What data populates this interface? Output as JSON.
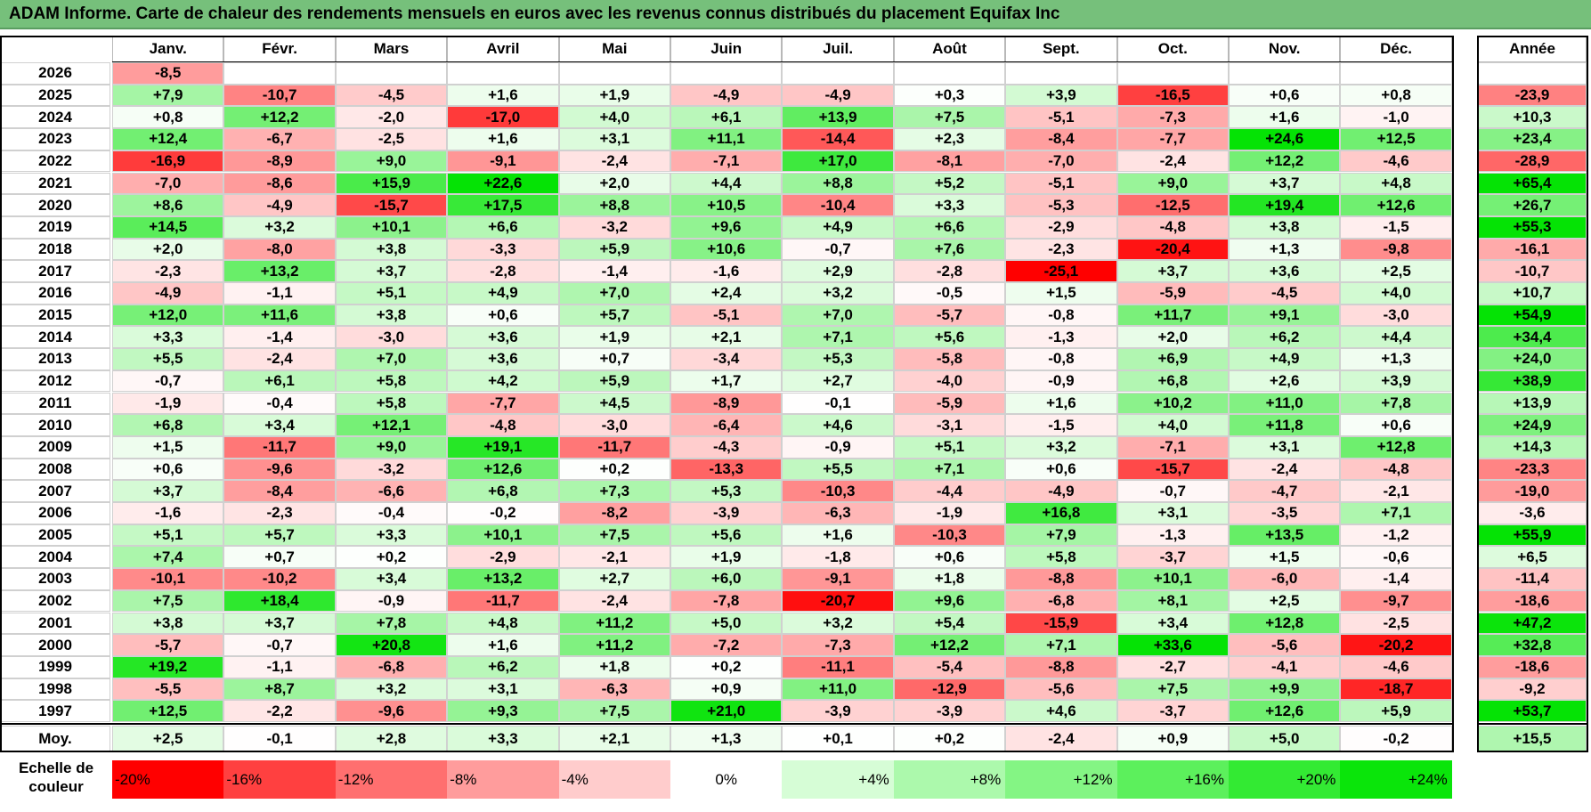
{
  "title": "ADAM Informe. Carte de chaleur des rendements mensuels en euros avec les revenus connus distribués du placement Equifax Inc",
  "chart_data": {
    "type": "heatmap",
    "title": "ADAM Informe. Carte de chaleur des rendements mensuels en euros avec les revenus connus distribués du placement Equifax Inc",
    "columns": [
      "Janv.",
      "Févr.",
      "Mars",
      "Avril",
      "Mai",
      "Juin",
      "Juil.",
      "Août",
      "Sept.",
      "Oct.",
      "Nov.",
      "Déc."
    ],
    "year_header": "Année",
    "rows": [
      {
        "year": "2026",
        "months": [
          "-8,5",
          "",
          "",
          "",
          "",
          "",
          "",
          "",
          "",
          "",
          "",
          ""
        ],
        "annual": ""
      },
      {
        "year": "2025",
        "months": [
          "+7,9",
          "-10,7",
          "-4,5",
          "+1,6",
          "+1,9",
          "-4,9",
          "-4,9",
          "+0,3",
          "+3,9",
          "-16,5",
          "+0,6",
          "+0,8"
        ],
        "annual": "-23,9"
      },
      {
        "year": "2024",
        "months": [
          "+0,8",
          "+12,2",
          "-2,0",
          "-17,0",
          "+4,0",
          "+6,1",
          "+13,9",
          "+7,5",
          "-5,1",
          "-7,3",
          "+1,6",
          "-1,0"
        ],
        "annual": "+10,3"
      },
      {
        "year": "2023",
        "months": [
          "+12,4",
          "-6,7",
          "-2,5",
          "+1,6",
          "+3,1",
          "+11,1",
          "-14,4",
          "+2,3",
          "-8,4",
          "-7,7",
          "+24,6",
          "+12,5"
        ],
        "annual": "+23,4"
      },
      {
        "year": "2022",
        "months": [
          "-16,9",
          "-8,9",
          "+9,0",
          "-9,1",
          "-2,4",
          "-7,1",
          "+17,0",
          "-8,1",
          "-7,0",
          "-2,4",
          "+12,2",
          "-4,6"
        ],
        "annual": "-28,9"
      },
      {
        "year": "2021",
        "months": [
          "-7,0",
          "-8,6",
          "+15,9",
          "+22,6",
          "+2,0",
          "+4,4",
          "+8,8",
          "+5,2",
          "-5,1",
          "+9,0",
          "+3,7",
          "+4,8"
        ],
        "annual": "+65,4"
      },
      {
        "year": "2020",
        "months": [
          "+8,6",
          "-4,9",
          "-15,7",
          "+17,5",
          "+8,8",
          "+10,5",
          "-10,4",
          "+3,3",
          "-5,3",
          "-12,5",
          "+19,4",
          "+12,6"
        ],
        "annual": "+26,7"
      },
      {
        "year": "2019",
        "months": [
          "+14,5",
          "+3,2",
          "+10,1",
          "+6,6",
          "-3,2",
          "+9,6",
          "+4,9",
          "+6,6",
          "-2,9",
          "-4,8",
          "+3,8",
          "-1,5"
        ],
        "annual": "+55,3"
      },
      {
        "year": "2018",
        "months": [
          "+2,0",
          "-8,0",
          "+3,8",
          "-3,3",
          "+5,9",
          "+10,6",
          "-0,7",
          "+7,6",
          "-2,3",
          "-20,4",
          "+1,3",
          "-9,8"
        ],
        "annual": "-16,1"
      },
      {
        "year": "2017",
        "months": [
          "-2,3",
          "+13,2",
          "+3,7",
          "-2,8",
          "-1,4",
          "-1,6",
          "+2,9",
          "-2,8",
          "-25,1",
          "+3,7",
          "+3,6",
          "+2,5"
        ],
        "annual": "-10,7"
      },
      {
        "year": "2016",
        "months": [
          "-4,9",
          "-1,1",
          "+5,1",
          "+4,9",
          "+7,0",
          "+2,4",
          "+3,2",
          "-0,5",
          "+1,5",
          "-5,9",
          "-4,5",
          "+4,0"
        ],
        "annual": "+10,7"
      },
      {
        "year": "2015",
        "months": [
          "+12,0",
          "+11,6",
          "+3,8",
          "+0,6",
          "+5,7",
          "-5,1",
          "+7,0",
          "-5,7",
          "-0,8",
          "+11,7",
          "+9,1",
          "-3,0"
        ],
        "annual": "+54,9"
      },
      {
        "year": "2014",
        "months": [
          "+3,3",
          "-1,4",
          "-3,0",
          "+3,6",
          "+1,9",
          "+2,1",
          "+7,1",
          "+5,6",
          "-1,3",
          "+2,0",
          "+6,2",
          "+4,4"
        ],
        "annual": "+34,4"
      },
      {
        "year": "2013",
        "months": [
          "+5,5",
          "-2,4",
          "+7,0",
          "+3,6",
          "+0,7",
          "-3,4",
          "+5,3",
          "-5,8",
          "-0,8",
          "+6,9",
          "+4,9",
          "+1,3"
        ],
        "annual": "+24,0"
      },
      {
        "year": "2012",
        "months": [
          "-0,7",
          "+6,1",
          "+5,8",
          "+4,2",
          "+5,9",
          "+1,7",
          "+2,7",
          "-4,0",
          "-0,9",
          "+6,8",
          "+2,6",
          "+3,9"
        ],
        "annual": "+38,9"
      },
      {
        "year": "2011",
        "months": [
          "-1,9",
          "-0,4",
          "+5,8",
          "-7,7",
          "+4,5",
          "-8,9",
          "-0,1",
          "-5,9",
          "+1,6",
          "+10,2",
          "+11,0",
          "+7,8"
        ],
        "annual": "+13,9"
      },
      {
        "year": "2010",
        "months": [
          "+6,8",
          "+3,4",
          "+12,1",
          "-4,8",
          "-3,0",
          "-6,4",
          "+4,6",
          "-3,1",
          "-1,5",
          "+4,0",
          "+11,8",
          "+0,6"
        ],
        "annual": "+24,9"
      },
      {
        "year": "2009",
        "months": [
          "+1,5",
          "-11,7",
          "+9,0",
          "+19,1",
          "-11,7",
          "-4,3",
          "-0,9",
          "+5,1",
          "+3,2",
          "-7,1",
          "+3,1",
          "+12,8"
        ],
        "annual": "+14,3"
      },
      {
        "year": "2008",
        "months": [
          "+0,6",
          "-9,6",
          "-3,2",
          "+12,6",
          "+0,2",
          "-13,3",
          "+5,5",
          "+7,1",
          "+0,6",
          "-15,7",
          "-2,4",
          "-4,8"
        ],
        "annual": "-23,3"
      },
      {
        "year": "2007",
        "months": [
          "+3,7",
          "-8,4",
          "-6,6",
          "+6,8",
          "+7,3",
          "+5,3",
          "-10,3",
          "-4,4",
          "-4,9",
          "-0,7",
          "-4,7",
          "-2,1"
        ],
        "annual": "-19,0"
      },
      {
        "year": "2006",
        "months": [
          "-1,6",
          "-2,3",
          "-0,4",
          "-0,2",
          "-8,2",
          "-3,9",
          "-6,3",
          "-1,9",
          "+16,8",
          "+3,1",
          "-3,5",
          "+7,1"
        ],
        "annual": "-3,6"
      },
      {
        "year": "2005",
        "months": [
          "+5,1",
          "+5,7",
          "+3,3",
          "+10,1",
          "+7,5",
          "+5,6",
          "+1,6",
          "-10,3",
          "+7,9",
          "-1,3",
          "+13,5",
          "-1,2"
        ],
        "annual": "+55,9"
      },
      {
        "year": "2004",
        "months": [
          "+7,4",
          "+0,7",
          "+0,2",
          "-2,9",
          "-2,1",
          "+1,9",
          "-1,8",
          "+0,6",
          "+5,8",
          "-3,7",
          "+1,5",
          "-0,6"
        ],
        "annual": "+6,5"
      },
      {
        "year": "2003",
        "months": [
          "-10,1",
          "-10,2",
          "+3,4",
          "+13,2",
          "+2,7",
          "+6,0",
          "-9,1",
          "+1,8",
          "-8,8",
          "+10,1",
          "-6,0",
          "-1,4"
        ],
        "annual": "-11,4"
      },
      {
        "year": "2002",
        "months": [
          "+7,5",
          "+18,4",
          "-0,9",
          "-11,7",
          "-2,4",
          "-7,8",
          "-20,7",
          "+9,6",
          "-6,8",
          "+8,1",
          "+2,5",
          "-9,7"
        ],
        "annual": "-18,6"
      },
      {
        "year": "2001",
        "months": [
          "+3,8",
          "+3,7",
          "+7,8",
          "+4,8",
          "+11,2",
          "+5,0",
          "+3,2",
          "+5,4",
          "-15,9",
          "+3,4",
          "+12,8",
          "-2,5"
        ],
        "annual": "+47,2"
      },
      {
        "year": "2000",
        "months": [
          "-5,7",
          "-0,7",
          "+20,8",
          "+1,6",
          "+11,2",
          "-7,2",
          "-7,3",
          "+12,2",
          "+7,1",
          "+33,6",
          "-5,6",
          "-20,2"
        ],
        "annual": "+32,8"
      },
      {
        "year": "1999",
        "months": [
          "+19,2",
          "-1,1",
          "-6,8",
          "+6,2",
          "+1,8",
          "+0,2",
          "-11,1",
          "-5,4",
          "-8,8",
          "-2,7",
          "-4,1",
          "-4,6"
        ],
        "annual": "-18,6"
      },
      {
        "year": "1998",
        "months": [
          "-5,5",
          "+8,7",
          "+3,2",
          "+3,1",
          "-6,3",
          "+0,9",
          "+11,0",
          "-12,9",
          "-5,6",
          "+7,5",
          "+9,9",
          "-18,7"
        ],
        "annual": "-9,2"
      },
      {
        "year": "1997",
        "months": [
          "+12,5",
          "-2,2",
          "-9,6",
          "+9,3",
          "+7,5",
          "+21,0",
          "-3,9",
          "-3,9",
          "+4,6",
          "-3,7",
          "+12,6",
          "+5,9"
        ],
        "annual": "+53,7"
      }
    ],
    "average": {
      "label": "Moy.",
      "months": [
        "+2,5",
        "-0,1",
        "+2,8",
        "+3,3",
        "+2,1",
        "+1,3",
        "+0,1",
        "+0,2",
        "-2,4",
        "+0,9",
        "+5,0",
        "-0,2"
      ],
      "annual": "+15,5"
    },
    "color_scale": {
      "label": "Echelle de couleur",
      "steps": [
        {
          "label": "-20%",
          "color": "#ff0000"
        },
        {
          "label": "-16%",
          "color": "#ff4040"
        },
        {
          "label": "-12%",
          "color": "#ff6f6f"
        },
        {
          "label": "-8%",
          "color": "#ff9c9c"
        },
        {
          "label": "-4%",
          "color": "#ffcccc"
        },
        {
          "label": "0%",
          "color": "#ffffff"
        },
        {
          "label": "+4%",
          "color": "#d6fdd6"
        },
        {
          "label": "+8%",
          "color": "#acf9ac"
        },
        {
          "label": "+12%",
          "color": "#84f584"
        },
        {
          "label": "+16%",
          "color": "#5cf05c"
        },
        {
          "label": "+20%",
          "color": "#33ea33"
        },
        {
          "label": "+24%",
          "color": "#0ae50a"
        }
      ]
    }
  }
}
